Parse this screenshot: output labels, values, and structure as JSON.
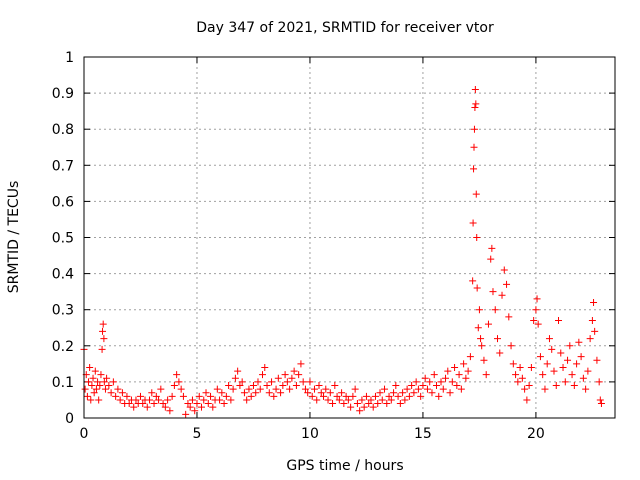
{
  "chart_data": {
    "type": "scatter",
    "title": "Day 347 of 2021, SRMTID for receiver vtor",
    "xlabel": "GPS time / hours",
    "ylabel": "SRMTID / TECUs",
    "xlim": [
      0,
      23.5
    ],
    "ylim": [
      0,
      1
    ],
    "xticks": [
      0,
      5,
      10,
      15,
      20
    ],
    "xtick_labels": [
      "0",
      "5",
      "10",
      "15",
      "20"
    ],
    "yticks": [
      0,
      0.1,
      0.2,
      0.3,
      0.4,
      0.5,
      0.6,
      0.7,
      0.8,
      0.9,
      1
    ],
    "ytick_labels": [
      "0",
      "0.1",
      "0.2",
      "0.3",
      "0.4",
      "0.5",
      "0.6",
      "0.7",
      "0.8",
      "0.9",
      "1"
    ],
    "grid": true,
    "marker": "+",
    "color": "#ff0000",
    "series": [
      {
        "name": "SRMTID",
        "points": [
          [
            0.0,
            0.19
          ],
          [
            0.05,
            0.08
          ],
          [
            0.1,
            0.12
          ],
          [
            0.15,
            0.06
          ],
          [
            0.2,
            0.1
          ],
          [
            0.25,
            0.14
          ],
          [
            0.3,
            0.05
          ],
          [
            0.35,
            0.09
          ],
          [
            0.4,
            0.11
          ],
          [
            0.45,
            0.07
          ],
          [
            0.5,
            0.13
          ],
          [
            0.55,
            0.08
          ],
          [
            0.6,
            0.1
          ],
          [
            0.65,
            0.05
          ],
          [
            0.7,
            0.09
          ],
          [
            0.75,
            0.12
          ],
          [
            0.8,
            0.19
          ],
          [
            0.82,
            0.24
          ],
          [
            0.85,
            0.26
          ],
          [
            0.88,
            0.22
          ],
          [
            0.9,
            0.1
          ],
          [
            0.95,
            0.08
          ],
          [
            1.0,
            0.11
          ],
          [
            1.1,
            0.09
          ],
          [
            1.2,
            0.07
          ],
          [
            1.3,
            0.1
          ],
          [
            1.4,
            0.06
          ],
          [
            1.5,
            0.08
          ],
          [
            1.6,
            0.05
          ],
          [
            1.7,
            0.07
          ],
          [
            1.8,
            0.04
          ],
          [
            1.9,
            0.06
          ],
          [
            2.0,
            0.04
          ],
          [
            2.1,
            0.05
          ],
          [
            2.2,
            0.03
          ],
          [
            2.3,
            0.05
          ],
          [
            2.4,
            0.04
          ],
          [
            2.5,
            0.06
          ],
          [
            2.6,
            0.04
          ],
          [
            2.7,
            0.05
          ],
          [
            2.8,
            0.03
          ],
          [
            2.9,
            0.05
          ],
          [
            3.0,
            0.07
          ],
          [
            3.1,
            0.04
          ],
          [
            3.2,
            0.06
          ],
          [
            3.3,
            0.05
          ],
          [
            3.4,
            0.08
          ],
          [
            3.5,
            0.04
          ],
          [
            3.6,
            0.03
          ],
          [
            3.7,
            0.05
          ],
          [
            3.8,
            0.02
          ],
          [
            3.9,
            0.06
          ],
          [
            4.0,
            0.09
          ],
          [
            4.1,
            0.12
          ],
          [
            4.2,
            0.1
          ],
          [
            4.3,
            0.08
          ],
          [
            4.4,
            0.06
          ],
          [
            4.5,
            0.01
          ],
          [
            4.6,
            0.04
          ],
          [
            4.7,
            0.03
          ],
          [
            4.8,
            0.05
          ],
          [
            4.9,
            0.02
          ],
          [
            5.0,
            0.04
          ],
          [
            5.1,
            0.06
          ],
          [
            5.2,
            0.03
          ],
          [
            5.3,
            0.05
          ],
          [
            5.4,
            0.07
          ],
          [
            5.5,
            0.04
          ],
          [
            5.6,
            0.06
          ],
          [
            5.7,
            0.03
          ],
          [
            5.8,
            0.05
          ],
          [
            5.9,
            0.08
          ],
          [
            6.0,
            0.05
          ],
          [
            6.1,
            0.07
          ],
          [
            6.2,
            0.04
          ],
          [
            6.3,
            0.06
          ],
          [
            6.4,
            0.09
          ],
          [
            6.5,
            0.05
          ],
          [
            6.6,
            0.08
          ],
          [
            6.7,
            0.11
          ],
          [
            6.8,
            0.13
          ],
          [
            6.9,
            0.09
          ],
          [
            7.0,
            0.1
          ],
          [
            7.1,
            0.07
          ],
          [
            7.2,
            0.05
          ],
          [
            7.3,
            0.08
          ],
          [
            7.4,
            0.06
          ],
          [
            7.5,
            0.09
          ],
          [
            7.6,
            0.07
          ],
          [
            7.7,
            0.1
          ],
          [
            7.8,
            0.08
          ],
          [
            7.9,
            0.12
          ],
          [
            8.0,
            0.14
          ],
          [
            8.1,
            0.09
          ],
          [
            8.2,
            0.07
          ],
          [
            8.3,
            0.1
          ],
          [
            8.4,
            0.06
          ],
          [
            8.5,
            0.08
          ],
          [
            8.6,
            0.11
          ],
          [
            8.7,
            0.07
          ],
          [
            8.8,
            0.09
          ],
          [
            8.9,
            0.12
          ],
          [
            9.0,
            0.1
          ],
          [
            9.1,
            0.08
          ],
          [
            9.2,
            0.11
          ],
          [
            9.3,
            0.13
          ],
          [
            9.4,
            0.09
          ],
          [
            9.5,
            0.12
          ],
          [
            9.6,
            0.15
          ],
          [
            9.7,
            0.1
          ],
          [
            9.8,
            0.08
          ],
          [
            9.9,
            0.07
          ],
          [
            10.0,
            0.1
          ],
          [
            10.1,
            0.06
          ],
          [
            10.2,
            0.08
          ],
          [
            10.3,
            0.05
          ],
          [
            10.4,
            0.09
          ],
          [
            10.5,
            0.07
          ],
          [
            10.6,
            0.06
          ],
          [
            10.7,
            0.08
          ],
          [
            10.8,
            0.05
          ],
          [
            10.9,
            0.07
          ],
          [
            11.0,
            0.04
          ],
          [
            11.1,
            0.09
          ],
          [
            11.2,
            0.06
          ],
          [
            11.3,
            0.05
          ],
          [
            11.4,
            0.07
          ],
          [
            11.5,
            0.04
          ],
          [
            11.6,
            0.06
          ],
          [
            11.7,
            0.05
          ],
          [
            11.8,
            0.03
          ],
          [
            11.9,
            0.06
          ],
          [
            12.0,
            0.08
          ],
          [
            12.1,
            0.04
          ],
          [
            12.2,
            0.02
          ],
          [
            12.3,
            0.05
          ],
          [
            12.4,
            0.03
          ],
          [
            12.5,
            0.06
          ],
          [
            12.6,
            0.04
          ],
          [
            12.7,
            0.05
          ],
          [
            12.8,
            0.03
          ],
          [
            12.9,
            0.06
          ],
          [
            13.0,
            0.04
          ],
          [
            13.1,
            0.07
          ],
          [
            13.2,
            0.05
          ],
          [
            13.3,
            0.08
          ],
          [
            13.4,
            0.04
          ],
          [
            13.5,
            0.06
          ],
          [
            13.6,
            0.05
          ],
          [
            13.7,
            0.07
          ],
          [
            13.8,
            0.09
          ],
          [
            13.9,
            0.06
          ],
          [
            14.0,
            0.04
          ],
          [
            14.1,
            0.07
          ],
          [
            14.2,
            0.05
          ],
          [
            14.3,
            0.08
          ],
          [
            14.4,
            0.06
          ],
          [
            14.5,
            0.09
          ],
          [
            14.6,
            0.07
          ],
          [
            14.7,
            0.1
          ],
          [
            14.8,
            0.08
          ],
          [
            14.9,
            0.06
          ],
          [
            15.0,
            0.09
          ],
          [
            15.1,
            0.11
          ],
          [
            15.2,
            0.08
          ],
          [
            15.3,
            0.1
          ],
          [
            15.4,
            0.07
          ],
          [
            15.5,
            0.12
          ],
          [
            15.6,
            0.09
          ],
          [
            15.7,
            0.06
          ],
          [
            15.8,
            0.1
          ],
          [
            15.9,
            0.08
          ],
          [
            16.0,
            0.11
          ],
          [
            16.1,
            0.13
          ],
          [
            16.2,
            0.07
          ],
          [
            16.3,
            0.1
          ],
          [
            16.4,
            0.14
          ],
          [
            16.5,
            0.09
          ],
          [
            16.6,
            0.12
          ],
          [
            16.7,
            0.08
          ],
          [
            16.8,
            0.15
          ],
          [
            16.9,
            0.11
          ],
          [
            17.0,
            0.13
          ],
          [
            17.1,
            0.17
          ],
          [
            17.2,
            0.38
          ],
          [
            17.22,
            0.54
          ],
          [
            17.24,
            0.69
          ],
          [
            17.26,
            0.75
          ],
          [
            17.28,
            0.8
          ],
          [
            17.3,
            0.86
          ],
          [
            17.32,
            0.91
          ],
          [
            17.34,
            0.87
          ],
          [
            17.36,
            0.62
          ],
          [
            17.38,
            0.5
          ],
          [
            17.4,
            0.36
          ],
          [
            17.45,
            0.25
          ],
          [
            17.5,
            0.3
          ],
          [
            17.55,
            0.22
          ],
          [
            17.6,
            0.2
          ],
          [
            17.7,
            0.16
          ],
          [
            17.8,
            0.12
          ],
          [
            17.9,
            0.26
          ],
          [
            18.0,
            0.44
          ],
          [
            18.05,
            0.47
          ],
          [
            18.1,
            0.35
          ],
          [
            18.2,
            0.3
          ],
          [
            18.3,
            0.22
          ],
          [
            18.4,
            0.18
          ],
          [
            18.5,
            0.34
          ],
          [
            18.6,
            0.41
          ],
          [
            18.7,
            0.37
          ],
          [
            18.8,
            0.28
          ],
          [
            18.9,
            0.2
          ],
          [
            19.0,
            0.15
          ],
          [
            19.1,
            0.12
          ],
          [
            19.2,
            0.1
          ],
          [
            19.3,
            0.14
          ],
          [
            19.4,
            0.11
          ],
          [
            19.5,
            0.08
          ],
          [
            19.6,
            0.05
          ],
          [
            19.7,
            0.09
          ],
          [
            19.8,
            0.14
          ],
          [
            19.9,
            0.27
          ],
          [
            20.0,
            0.3
          ],
          [
            20.05,
            0.33
          ],
          [
            20.1,
            0.26
          ],
          [
            20.2,
            0.17
          ],
          [
            20.3,
            0.12
          ],
          [
            20.4,
            0.08
          ],
          [
            20.5,
            0.15
          ],
          [
            20.6,
            0.22
          ],
          [
            20.7,
            0.19
          ],
          [
            20.8,
            0.13
          ],
          [
            20.9,
            0.09
          ],
          [
            21.0,
            0.27
          ],
          [
            21.1,
            0.18
          ],
          [
            21.2,
            0.14
          ],
          [
            21.3,
            0.1
          ],
          [
            21.4,
            0.16
          ],
          [
            21.5,
            0.2
          ],
          [
            21.6,
            0.12
          ],
          [
            21.7,
            0.09
          ],
          [
            21.8,
            0.15
          ],
          [
            21.9,
            0.21
          ],
          [
            22.0,
            0.17
          ],
          [
            22.1,
            0.11
          ],
          [
            22.2,
            0.08
          ],
          [
            22.3,
            0.13
          ],
          [
            22.4,
            0.22
          ],
          [
            22.5,
            0.27
          ],
          [
            22.55,
            0.32
          ],
          [
            22.6,
            0.24
          ],
          [
            22.7,
            0.16
          ],
          [
            22.8,
            0.1
          ],
          [
            22.85,
            0.05
          ],
          [
            22.9,
            0.04
          ]
        ]
      }
    ]
  }
}
